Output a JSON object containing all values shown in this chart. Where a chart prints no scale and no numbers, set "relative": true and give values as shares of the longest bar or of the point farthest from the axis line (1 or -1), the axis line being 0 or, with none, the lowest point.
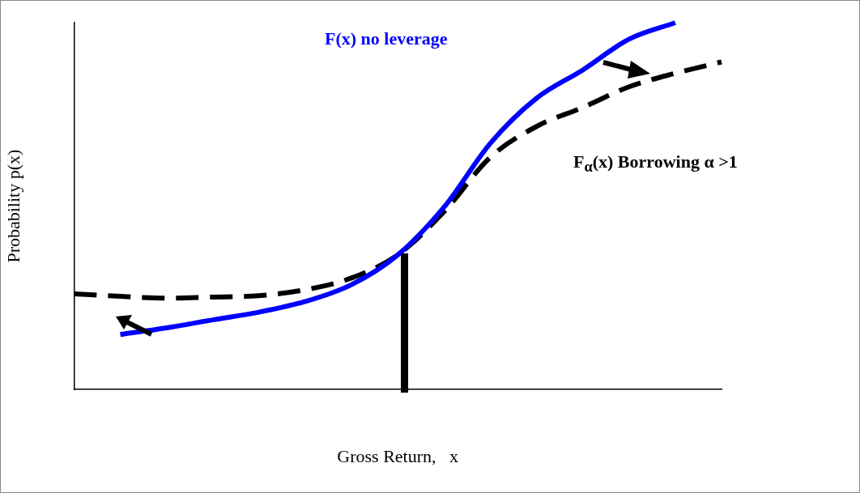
{
  "chart_data": {
    "type": "line",
    "relative": true,
    "xlabel": "Gross Return,   x",
    "ylabel": "Probability p(x)",
    "categories": [
      null,
      null,
      null,
      null,
      null,
      null,
      null,
      null,
      null,
      null,
      null,
      null,
      null,
      null,
      null
    ],
    "series": [
      {
        "color": "#0000ff",
        "line_style": "solid",
        "values": [
          null,
          0.15,
          0.168,
          0.19,
          0.211,
          0.24,
          0.286,
          0.367,
          0.497,
          0.671,
          0.794,
          0.871,
          0.955,
          1,
          null
        ]
      },
      {
        "color": "#000000",
        "line_style": "dashed",
        "values": [
          0.261,
          0.254,
          0.249,
          0.252,
          0.256,
          0.272,
          0.304,
          0.367,
          0.485,
          0.633,
          0.717,
          0.769,
          0.825,
          0.862,
          0.893
        ]
      }
    ],
    "annotations": [
      "F(x) no leverage",
      "F$_{α}$(x) Borrowing  α >1"
    ],
    "grid": false,
    "legend": false,
    "marker": "none"
  }
}
